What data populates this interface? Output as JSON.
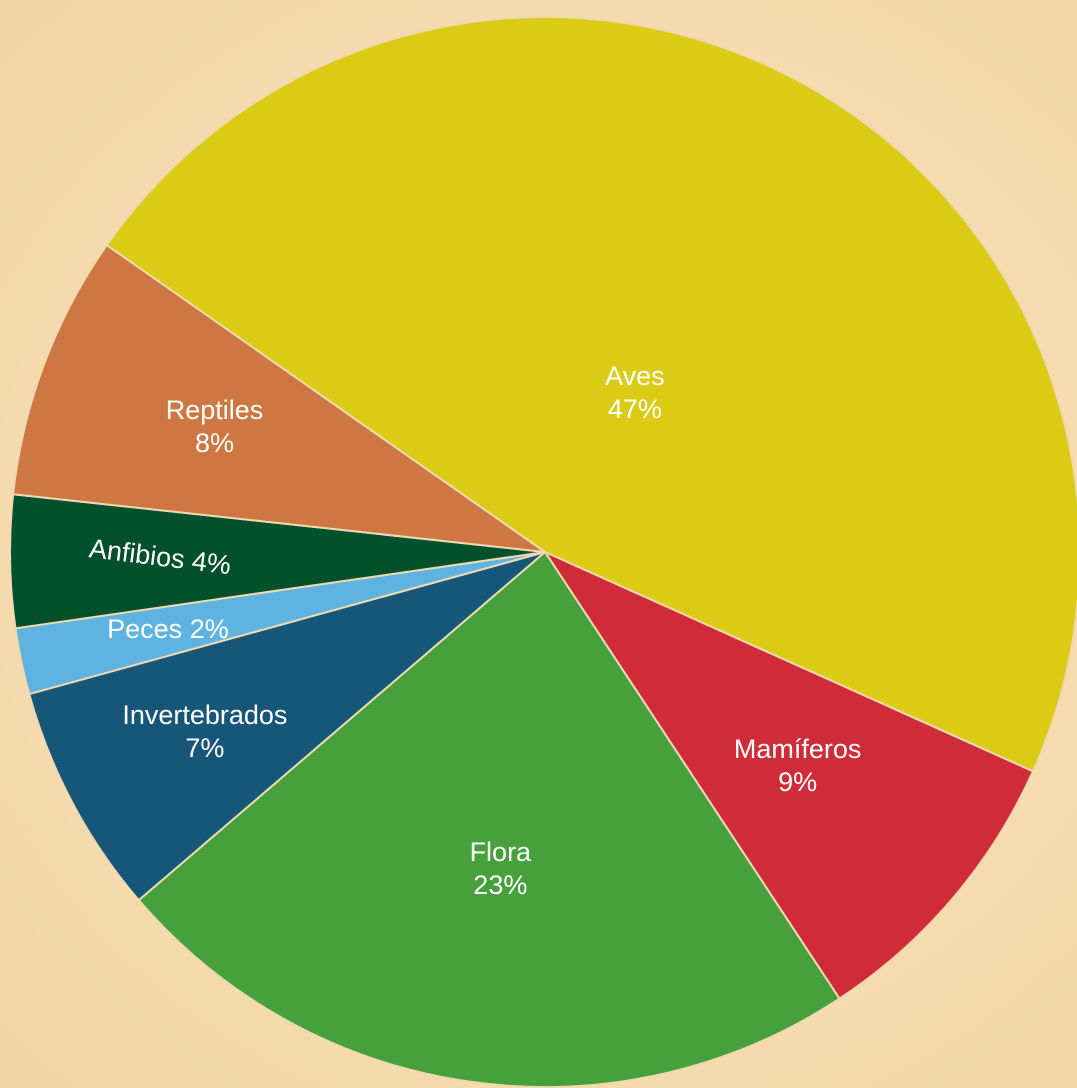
{
  "chart_data": {
    "type": "pie",
    "title": "",
    "unit": "%",
    "slices": [
      {
        "name": "Aves",
        "value": 47,
        "value_label": "47%",
        "color": "#dccb14",
        "inline": false
      },
      {
        "name": "Mamíferos",
        "value": 9,
        "value_label": "9%",
        "color": "#cf2b38",
        "inline": false
      },
      {
        "name": "Flora",
        "value": 23,
        "value_label": "23%",
        "color": "#46a03c",
        "inline": false
      },
      {
        "name": "Invertebrados",
        "value": 7,
        "value_label": "7%",
        "color": "#155679",
        "inline": false
      },
      {
        "name": "Peces",
        "value": 2,
        "value_label": "2%",
        "color": "#5fb3e1",
        "inline": true
      },
      {
        "name": "Anfibios",
        "value": 4,
        "value_label": "4%",
        "color": "#02502c",
        "inline": true
      },
      {
        "name": "Reptiles",
        "value": 8,
        "value_label": "8%",
        "color": "#cf7743",
        "inline": false
      }
    ],
    "start_angle_deg": -55,
    "direction": "clockwise",
    "legend": "none"
  }
}
